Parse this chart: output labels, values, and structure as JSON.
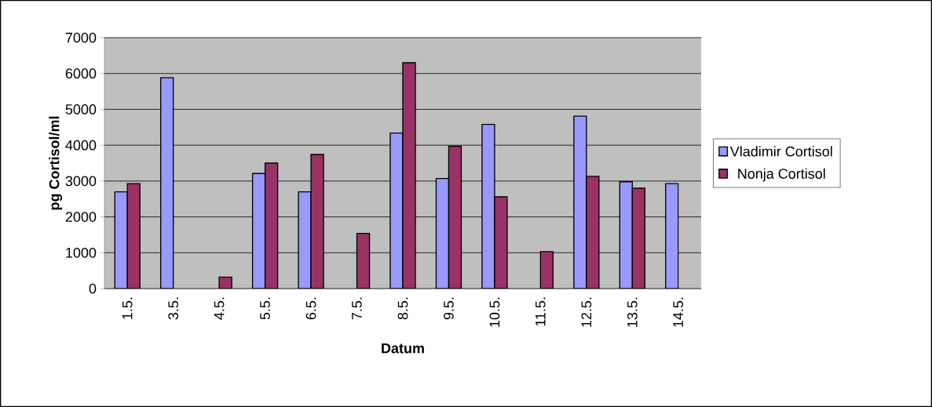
{
  "chart_data": {
    "type": "bar",
    "xlabel": "Datum",
    "ylabel": "pg Cortisol/ml",
    "categories": [
      "1.5.",
      "3.5.",
      "4.5.",
      "5.5.",
      "6.5.",
      "7.5.",
      "8.5.",
      "9.5.",
      "10.5.",
      "11.5.",
      "12.5.",
      "13.5.",
      "14.5."
    ],
    "series": [
      {
        "name": "Vladimir Cortisol",
        "color": "#9999ff",
        "values": [
          2700,
          5880,
          null,
          3210,
          2700,
          null,
          4340,
          3070,
          4580,
          null,
          4810,
          2980,
          2930
        ]
      },
      {
        "name": "Nonja Cortisol",
        "color": "#993366",
        "values": [
          2930,
          null,
          320,
          3500,
          3740,
          1540,
          6300,
          3970,
          2560,
          1030,
          3130,
          2800,
          null
        ]
      }
    ],
    "ylim": [
      0,
      7000
    ],
    "yticks": [
      0,
      1000,
      2000,
      3000,
      4000,
      5000,
      6000,
      7000
    ],
    "grid": "y",
    "legend": "right"
  }
}
